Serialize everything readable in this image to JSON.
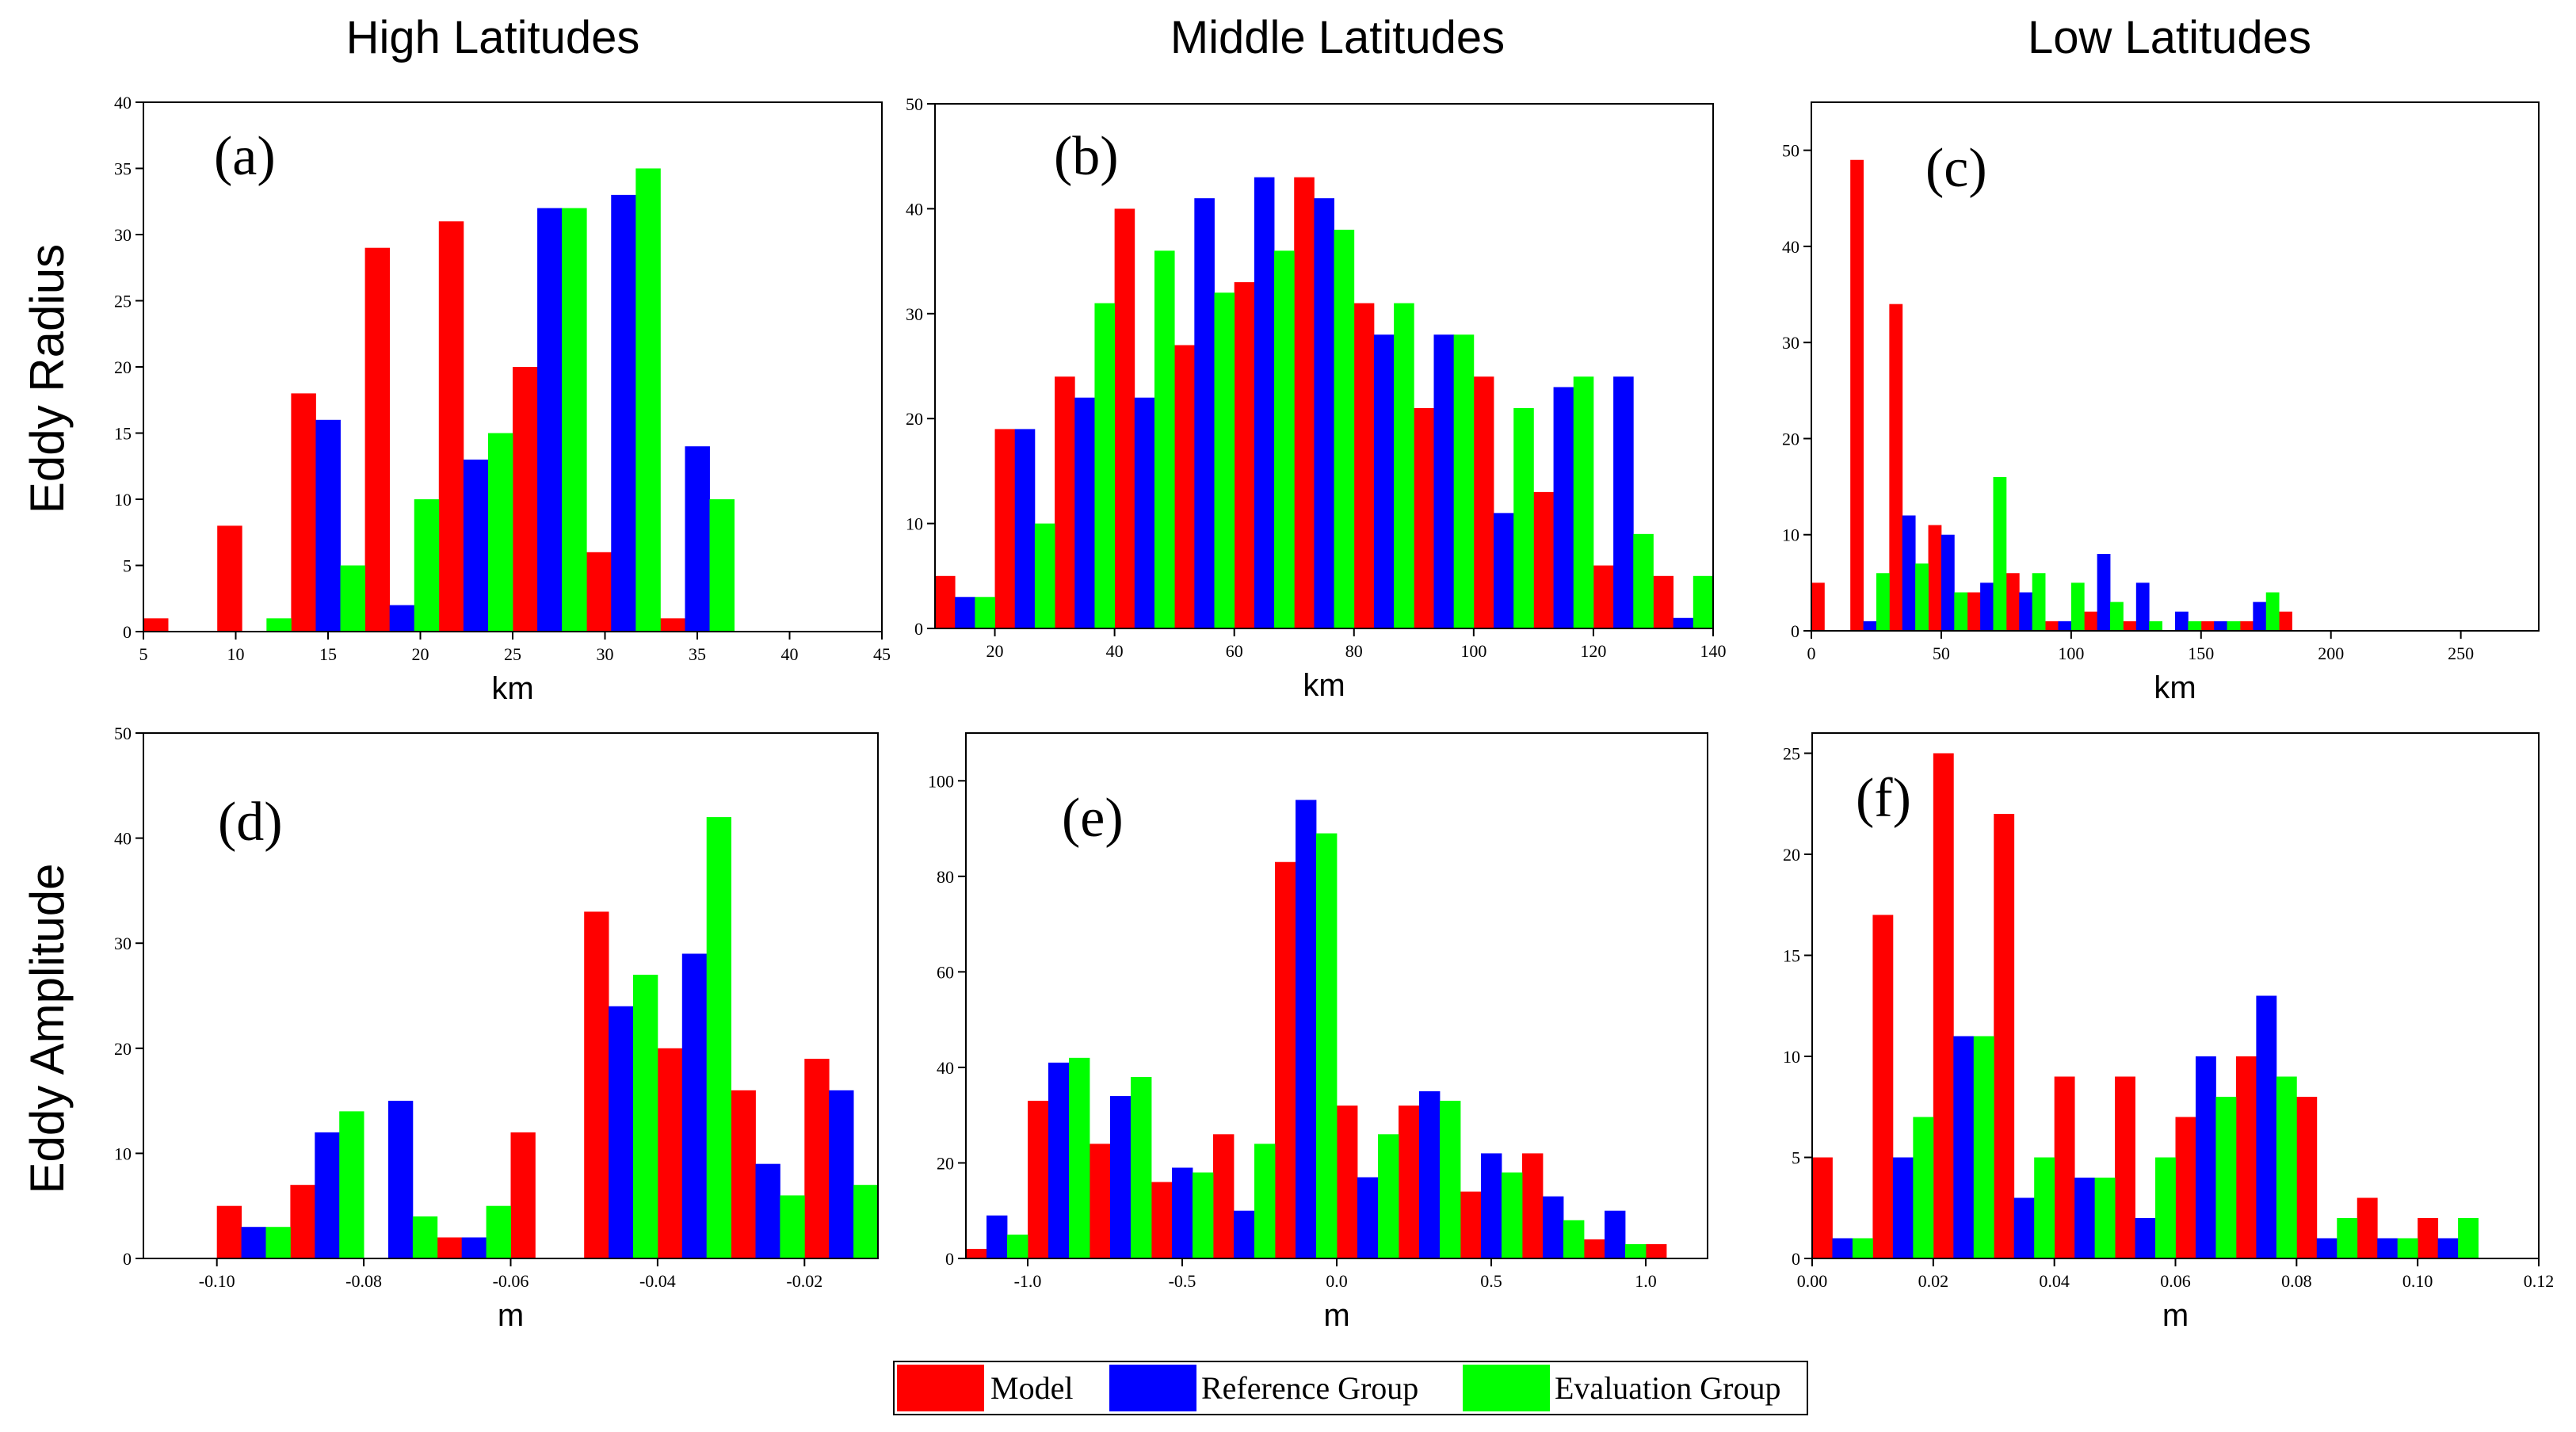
{
  "column_titles": [
    "High Latitudes",
    "Middle Latitudes",
    "Low Latitudes"
  ],
  "row_titles": [
    "Eddy Radius",
    "Eddy Amplitude"
  ],
  "legend": [
    {
      "label": "Model",
      "color": "#ff0000"
    },
    {
      "label": "Reference Group",
      "color": "#0000ff"
    },
    {
      "label": "Evaluation Group",
      "color": "#00ff00"
    }
  ],
  "chart_data": [
    {
      "panel": "(a)",
      "type": "bar",
      "xlabel": "km",
      "xlim": [
        5,
        45
      ],
      "ylim": [
        0,
        40
      ],
      "xticks": [
        5,
        10,
        15,
        20,
        25,
        30,
        35,
        40,
        45
      ],
      "xtick_labels": [
        "5",
        "10",
        "15",
        "20",
        "25",
        "30",
        "35",
        "40",
        "45"
      ],
      "yticks": [
        0,
        5,
        10,
        15,
        20,
        25,
        30,
        35,
        40
      ],
      "ytick_labels": [
        "0",
        "5",
        "10",
        "15",
        "20",
        "25",
        "30",
        "35",
        "40"
      ],
      "bin_start": 5,
      "bin_width": 4,
      "series": [
        {
          "name": "Model",
          "values": [
            1,
            8,
            18,
            29,
            31,
            20,
            6,
            1
          ]
        },
        {
          "name": "Reference Group",
          "values": [
            0,
            0,
            16,
            2,
            13,
            32,
            33,
            14
          ]
        },
        {
          "name": "Evaluation Group",
          "values": [
            0,
            1,
            5,
            10,
            15,
            32,
            35,
            10
          ]
        }
      ]
    },
    {
      "panel": "(b)",
      "type": "bar",
      "xlabel": "km",
      "xlim": [
        10,
        140
      ],
      "ylim": [
        0,
        50
      ],
      "xticks": [
        20,
        40,
        60,
        80,
        100,
        120,
        140
      ],
      "xtick_labels": [
        "20",
        "40",
        "60",
        "80",
        "100",
        "120",
        "140"
      ],
      "yticks": [
        0,
        10,
        20,
        30,
        40,
        50
      ],
      "ytick_labels": [
        "0",
        "10",
        "20",
        "30",
        "40",
        "50"
      ],
      "bin_start": 10,
      "bin_width": 10,
      "series": [
        {
          "name": "Model",
          "values": [
            5,
            19,
            24,
            40,
            27,
            33,
            43,
            31,
            21,
            24,
            13,
            6,
            5
          ]
        },
        {
          "name": "Reference Group",
          "values": [
            3,
            19,
            22,
            22,
            41,
            43,
            41,
            28,
            28,
            11,
            23,
            24,
            1
          ]
        },
        {
          "name": "Evaluation Group",
          "values": [
            3,
            10,
            31,
            36,
            32,
            36,
            38,
            31,
            28,
            21,
            24,
            9,
            5
          ]
        }
      ]
    },
    {
      "panel": "(c)",
      "type": "bar",
      "xlabel": "km",
      "xlim": [
        0,
        280
      ],
      "ylim": [
        0,
        55
      ],
      "xticks": [
        0,
        50,
        100,
        150,
        200,
        250
      ],
      "xtick_labels": [
        "0",
        "50",
        "100",
        "150",
        "200",
        "250"
      ],
      "yticks": [
        0,
        10,
        20,
        30,
        40,
        50
      ],
      "ytick_labels": [
        "0",
        "10",
        "20",
        "30",
        "40",
        "50"
      ],
      "bin_start": 0,
      "bin_width": 15,
      "series": [
        {
          "name": "Model",
          "values": [
            5,
            49,
            34,
            11,
            4,
            6,
            1,
            2,
            1,
            0,
            1,
            1,
            2,
            0,
            0,
            0,
            0,
            0,
            0
          ]
        },
        {
          "name": "Reference Group",
          "values": [
            0,
            1,
            12,
            10,
            5,
            4,
            1,
            8,
            5,
            2,
            1,
            3,
            0,
            0,
            0,
            0,
            0,
            0,
            0
          ]
        },
        {
          "name": "Evaluation Group",
          "values": [
            0,
            6,
            7,
            4,
            16,
            6,
            5,
            3,
            1,
            1,
            1,
            4,
            0,
            0,
            0,
            0,
            0,
            0,
            1
          ]
        }
      ]
    },
    {
      "panel": "(d)",
      "type": "bar",
      "xlabel": "m",
      "xlim": [
        -0.11,
        -0.01
      ],
      "ylim": [
        0,
        50
      ],
      "xticks": [
        -0.1,
        -0.08,
        -0.06,
        -0.04,
        -0.02
      ],
      "xtick_labels": [
        "-0.10",
        "-0.08",
        "-0.06",
        "-0.04",
        "-0.02"
      ],
      "yticks": [
        0,
        10,
        20,
        30,
        40,
        50
      ],
      "ytick_labels": [
        "0",
        "10",
        "20",
        "30",
        "40",
        "50"
      ],
      "bin_start": -0.1,
      "bin_width": 0.01,
      "series": [
        {
          "name": "Model",
          "values": [
            5,
            7,
            0,
            2,
            12,
            33,
            20,
            16,
            19
          ]
        },
        {
          "name": "Reference Group",
          "values": [
            3,
            12,
            15,
            2,
            0,
            24,
            29,
            9,
            16
          ]
        },
        {
          "name": "Evaluation Group",
          "values": [
            3,
            14,
            4,
            5,
            0,
            27,
            42,
            6,
            7
          ]
        }
      ]
    },
    {
      "panel": "(e)",
      "type": "bar",
      "xlabel": "m",
      "xlim": [
        -1.2,
        1.2
      ],
      "ylim": [
        0,
        110
      ],
      "xticks": [
        -1.0,
        -0.5,
        0.0,
        0.5,
        1.0
      ],
      "xtick_labels": [
        "-1.0",
        "-0.5",
        "0.0",
        "0.5",
        "1.0"
      ],
      "yticks": [
        0,
        20,
        40,
        60,
        80,
        100
      ],
      "ytick_labels": [
        "0",
        "20",
        "40",
        "60",
        "80",
        "100"
      ],
      "bin_start": -1.2,
      "bin_width": 0.2,
      "series": [
        {
          "name": "Model",
          "values": [
            2,
            33,
            24,
            16,
            26,
            83,
            32,
            32,
            14,
            22,
            4,
            3
          ]
        },
        {
          "name": "Reference Group",
          "values": [
            9,
            41,
            34,
            19,
            10,
            96,
            17,
            35,
            22,
            13,
            10,
            0
          ]
        },
        {
          "name": "Evaluation Group",
          "values": [
            5,
            42,
            38,
            18,
            24,
            89,
            26,
            33,
            18,
            8,
            3,
            0
          ]
        }
      ]
    },
    {
      "panel": "(f)",
      "type": "bar",
      "xlabel": "m",
      "xlim": [
        0,
        0.12
      ],
      "ylim": [
        0,
        26
      ],
      "xticks": [
        0,
        0.02,
        0.04,
        0.06,
        0.08,
        0.1,
        0.12
      ],
      "xtick_labels": [
        "0.00",
        "0.02",
        "0.04",
        "0.06",
        "0.08",
        "0.10",
        "0.12"
      ],
      "yticks": [
        0,
        5,
        10,
        15,
        20,
        25
      ],
      "ytick_labels": [
        "0",
        "5",
        "10",
        "15",
        "20",
        "25"
      ],
      "bin_start": 0,
      "bin_width": 0.01,
      "series": [
        {
          "name": "Model",
          "values": [
            5,
            17,
            25,
            22,
            9,
            9,
            7,
            10,
            8,
            3,
            2
          ]
        },
        {
          "name": "Reference Group",
          "values": [
            1,
            5,
            11,
            3,
            4,
            2,
            10,
            13,
            1,
            1,
            1
          ]
        },
        {
          "name": "Evaluation Group",
          "values": [
            1,
            7,
            11,
            5,
            4,
            5,
            8,
            9,
            2,
            1,
            2
          ]
        }
      ]
    }
  ]
}
